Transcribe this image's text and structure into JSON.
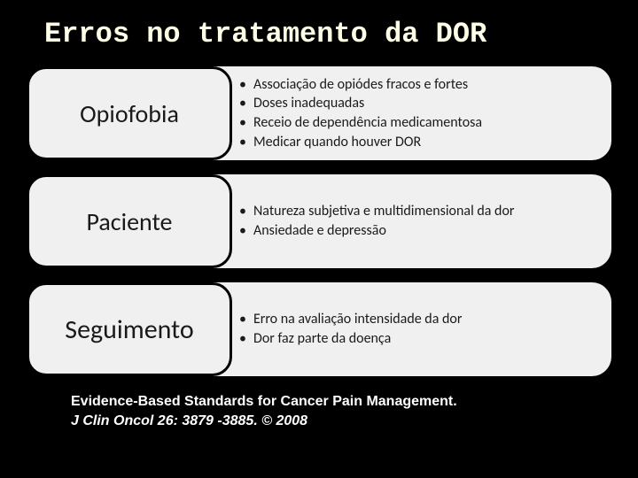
{
  "slide": {
    "title": "Erros no tratamento da DOR",
    "background_color": "#000000",
    "title_color": "#fefde6",
    "title_font": "Courier New",
    "title_fontsize": 32,
    "pill_background": "#f0f0f0",
    "pill_text_color": "#1a1a1a",
    "pill_border_color": "#000000",
    "content_fontsize": 16
  },
  "blocks": [
    {
      "label": "Opiofobia",
      "label_fontsize": 28,
      "items": [
        "Associação de opiódes fracos e fortes",
        "Doses inadequadas",
        "Receio de  dependência medicamentosa",
        "Medicar quando houver DOR"
      ]
    },
    {
      "label": "Paciente",
      "label_fontsize": 28,
      "items": [
        "Natureza subjetiva e multidimensional da dor",
        "Ansiedade e depressão"
      ]
    },
    {
      "label": "Seguimento",
      "label_fontsize": 30,
      "items": [
        "Erro  na avaliação intensidade da dor",
        "Dor faz parte da doença"
      ]
    }
  ],
  "citation": {
    "line1": "Evidence-Based Standards for Cancer Pain Management.",
    "line2": "J Clin Oncol 26: 3879 -3885. © 2008",
    "color": "#ffffff",
    "fontsize": 16
  }
}
